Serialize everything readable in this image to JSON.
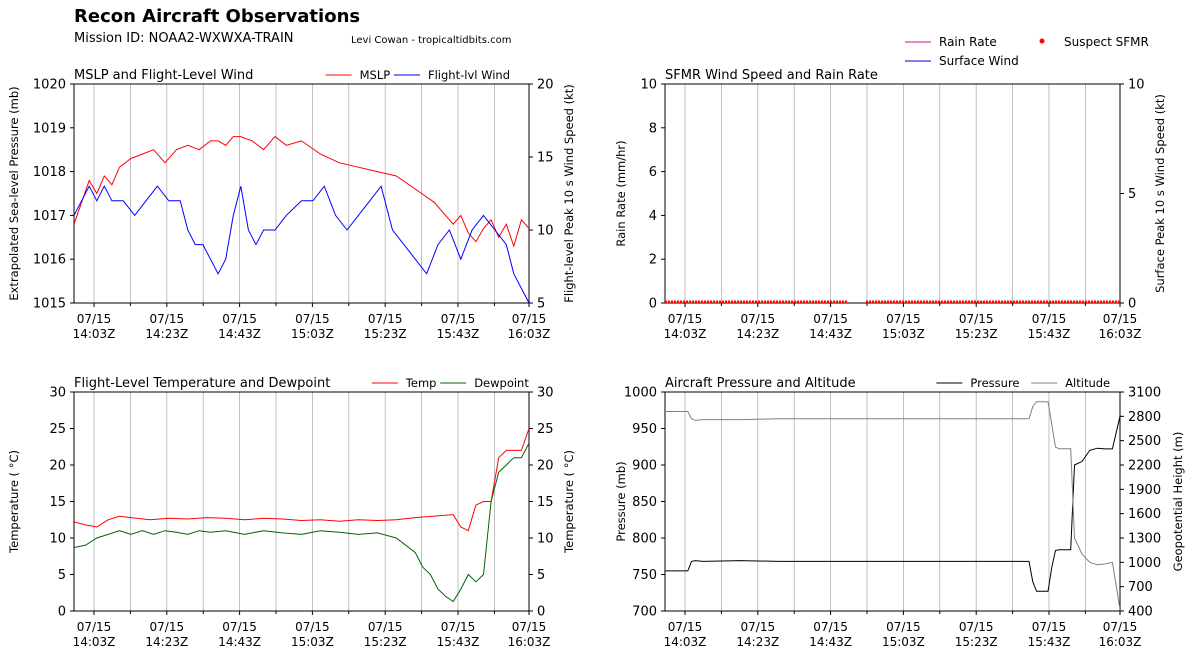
{
  "header": {
    "title": "Recon Aircraft Observations",
    "mission": "Mission ID: NOAA2-WXWXA-TRAIN",
    "credit": "Levi Cowan - tropicaltidbits.com"
  },
  "chart_data": [
    {
      "type": "line",
      "title": "MSLP and Flight-Level Wind",
      "ylabel": "Extrapolated Sea-level Pressure (mb)",
      "y2label": "Flight-level Peak 10 s Wind Speed (kt)",
      "xticks": [
        "07/15|14:03Z",
        "07/15|14:23Z",
        "07/15|14:43Z",
        "07/15|15:03Z",
        "07/15|15:23Z",
        "07/15|15:43Z",
        "07/15|16:03Z"
      ],
      "ylim": [
        1015,
        1020
      ],
      "yticks": [
        "1015",
        "1016",
        "1017",
        "1018",
        "1019",
        "1020"
      ],
      "y2lim": [
        5,
        20
      ],
      "y2ticks": [
        "5",
        "10",
        "15",
        "20"
      ],
      "legend": "top-right",
      "grid": true,
      "series": [
        {
          "name": "MSLP",
          "axis": "left",
          "color": "#ff0000",
          "x": [
            0,
            2,
            4,
            6,
            8,
            10,
            12,
            15,
            18,
            21,
            24,
            27,
            30,
            33,
            36,
            38,
            40,
            42,
            44,
            47,
            50,
            53,
            56,
            60,
            65,
            70,
            75,
            80,
            85,
            90,
            95,
            100,
            102,
            104,
            106,
            108,
            110,
            112,
            114,
            116,
            118,
            120
          ],
          "y": [
            1016.8,
            1017.3,
            1017.8,
            1017.5,
            1017.9,
            1017.7,
            1018.1,
            1018.3,
            1018.4,
            1018.5,
            1018.2,
            1018.5,
            1018.6,
            1018.5,
            1018.7,
            1018.7,
            1018.6,
            1018.8,
            1018.8,
            1018.7,
            1018.5,
            1018.8,
            1018.6,
            1018.7,
            1018.4,
            1018.2,
            1018.1,
            1018.0,
            1017.9,
            1017.6,
            1017.3,
            1016.8,
            1017.0,
            1016.6,
            1016.4,
            1016.7,
            1016.9,
            1016.5,
            1016.8,
            1016.3,
            1016.9,
            1016.7
          ]
        },
        {
          "name": "Flight-lvl Wind",
          "axis": "right",
          "color": "#0000ff",
          "x": [
            0,
            2,
            4,
            6,
            8,
            10,
            13,
            16,
            19,
            22,
            25,
            28,
            30,
            32,
            34,
            36,
            38,
            40,
            42,
            44,
            46,
            48,
            50,
            53,
            56,
            60,
            63,
            66,
            69,
            72,
            75,
            78,
            81,
            84,
            87,
            90,
            93,
            96,
            99,
            102,
            105,
            108,
            111,
            114,
            116,
            118,
            120
          ],
          "y": [
            11,
            12,
            13,
            12,
            13,
            12,
            12,
            11,
            12,
            13,
            12,
            12,
            10,
            9,
            9,
            8,
            7,
            8,
            11,
            13,
            10,
            9,
            10,
            10,
            11,
            12,
            12,
            13,
            11,
            10,
            11,
            12,
            13,
            10,
            9,
            8,
            7,
            9,
            10,
            8,
            10,
            11,
            10,
            9,
            7,
            6,
            5
          ]
        }
      ]
    },
    {
      "type": "line",
      "title": "SFMR Wind Speed and Rain Rate",
      "ylabel": "Rain Rate (mm/hr)",
      "y2label": "Surface Peak 10 s Wind Speed (kt)",
      "xticks": [
        "07/15|14:03Z",
        "07/15|14:23Z",
        "07/15|14:43Z",
        "07/15|15:03Z",
        "07/15|15:23Z",
        "07/15|15:43Z",
        "07/15|16:03Z"
      ],
      "ylim": [
        0,
        10
      ],
      "yticks": [
        "0",
        "2",
        "4",
        "6",
        "8",
        "10"
      ],
      "y2lim": [
        0,
        10
      ],
      "y2ticks": [
        "0",
        "5",
        "10"
      ],
      "legend": "above-right",
      "grid": true,
      "legend_items": [
        {
          "name": "Rain Rate",
          "style": "line",
          "color": "#c71585"
        },
        {
          "name": "Surface Wind",
          "style": "line",
          "color": "#0000cd"
        },
        {
          "name": "Suspect SFMR",
          "style": "dot",
          "color": "#ff0000"
        }
      ],
      "series": [
        {
          "name": "Suspect SFMR",
          "axis": "right",
          "color": "#ff0000",
          "x_start": 0,
          "x_end": 120,
          "gap": [
            48,
            53
          ],
          "y": 0
        }
      ]
    },
    {
      "type": "line",
      "title": "Flight-Level Temperature and Dewpoint",
      "ylabel": "Temperature ($^\\circ C$)",
      "y2label": "Temperature ($^\\circ C$)",
      "ylabel_display": "Temperature ( °C)",
      "xticks": [
        "07/15|14:03Z",
        "07/15|14:23Z",
        "07/15|14:43Z",
        "07/15|15:03Z",
        "07/15|15:23Z",
        "07/15|15:43Z",
        "07/15|16:03Z"
      ],
      "ylim": [
        0,
        30
      ],
      "yticks": [
        "0",
        "5",
        "10",
        "15",
        "20",
        "25",
        "30"
      ],
      "y2lim": [
        0,
        30
      ],
      "y2ticks": [
        "0",
        "5",
        "10",
        "15",
        "20",
        "25",
        "30"
      ],
      "legend": "top-right",
      "grid": true,
      "series": [
        {
          "name": "Temp",
          "axis": "left",
          "color": "#ff0000",
          "x": [
            0,
            3,
            6,
            9,
            12,
            15,
            20,
            25,
            30,
            35,
            40,
            45,
            50,
            55,
            60,
            65,
            70,
            75,
            80,
            85,
            90,
            95,
            100,
            102,
            104,
            106,
            108,
            110,
            112,
            114,
            116,
            118,
            120
          ],
          "y": [
            12.2,
            11.8,
            11.5,
            12.5,
            13,
            12.8,
            12.5,
            12.7,
            12.6,
            12.8,
            12.7,
            12.5,
            12.7,
            12.6,
            12.4,
            12.5,
            12.3,
            12.5,
            12.4,
            12.5,
            12.8,
            13,
            13.2,
            11.5,
            11.0,
            14.5,
            15,
            15,
            21,
            22,
            22,
            22,
            25
          ]
        },
        {
          "name": "Dewpoint",
          "axis": "left",
          "color": "#006400",
          "x": [
            0,
            3,
            6,
            9,
            12,
            15,
            18,
            21,
            24,
            27,
            30,
            33,
            36,
            40,
            45,
            50,
            55,
            60,
            65,
            70,
            75,
            80,
            85,
            90,
            92,
            94,
            96,
            98,
            100,
            102,
            104,
            106,
            108,
            110,
            112,
            114,
            116,
            118,
            120
          ],
          "y": [
            8.7,
            9,
            10,
            10.5,
            11,
            10.5,
            11,
            10.5,
            11,
            10.8,
            10.5,
            11,
            10.8,
            11,
            10.5,
            11,
            10.7,
            10.5,
            11,
            10.8,
            10.5,
            10.7,
            10,
            8,
            6,
            5,
            3,
            2,
            1.3,
            3,
            5,
            4,
            5,
            15,
            19,
            20,
            21,
            21,
            23
          ]
        }
      ]
    },
    {
      "type": "line",
      "title": "Aircraft Pressure and Altitude",
      "ylabel": "Pressure (mb)",
      "y2label": "Geopotential Height (m)",
      "xticks": [
        "07/15|14:03Z",
        "07/15|14:23Z",
        "07/15|14:43Z",
        "07/15|15:03Z",
        "07/15|15:23Z",
        "07/15|15:43Z",
        "07/15|16:03Z"
      ],
      "ylim": [
        700,
        1000
      ],
      "yticks": [
        "700",
        "750",
        "800",
        "850",
        "900",
        "950",
        "1000"
      ],
      "y2lim": [
        400,
        3100
      ],
      "y2ticks": [
        "400",
        "700",
        "1000",
        "1300",
        "1600",
        "1900",
        "2200",
        "2500",
        "2800",
        "3100"
      ],
      "legend": "top-right",
      "grid": true,
      "series": [
        {
          "name": "Pressure",
          "axis": "left",
          "color": "#000000",
          "x": [
            0,
            3,
            6,
            7,
            8,
            10,
            20,
            30,
            40,
            50,
            60,
            70,
            80,
            90,
            95,
            96,
            97,
            98,
            100,
            101,
            102,
            103,
            104,
            105,
            107,
            108,
            110,
            112,
            114,
            116,
            118,
            120
          ],
          "y": [
            755,
            755,
            755,
            768,
            769,
            768,
            769,
            768,
            768,
            768,
            768,
            768,
            768,
            768,
            768,
            768,
            740,
            727,
            727,
            727,
            760,
            783,
            784,
            784,
            784,
            900,
            905,
            920,
            923,
            922,
            922,
            967
          ]
        },
        {
          "name": "Altitude",
          "axis": "right",
          "color": "#808080",
          "x": [
            0,
            3,
            6,
            7,
            8,
            10,
            20,
            30,
            40,
            50,
            60,
            70,
            80,
            90,
            95,
            96,
            97,
            98,
            100,
            101,
            102,
            103,
            104,
            105,
            107,
            108,
            110,
            112,
            114,
            116,
            118,
            120
          ],
          "y": [
            2860,
            2860,
            2860,
            2770,
            2750,
            2760,
            2760,
            2770,
            2770,
            2770,
            2770,
            2770,
            2770,
            2770,
            2770,
            2770,
            2920,
            2980,
            2980,
            2980,
            2700,
            2420,
            2400,
            2400,
            2400,
            1300,
            1100,
            1000,
            970,
            980,
            1000,
            420
          ]
        }
      ]
    }
  ]
}
